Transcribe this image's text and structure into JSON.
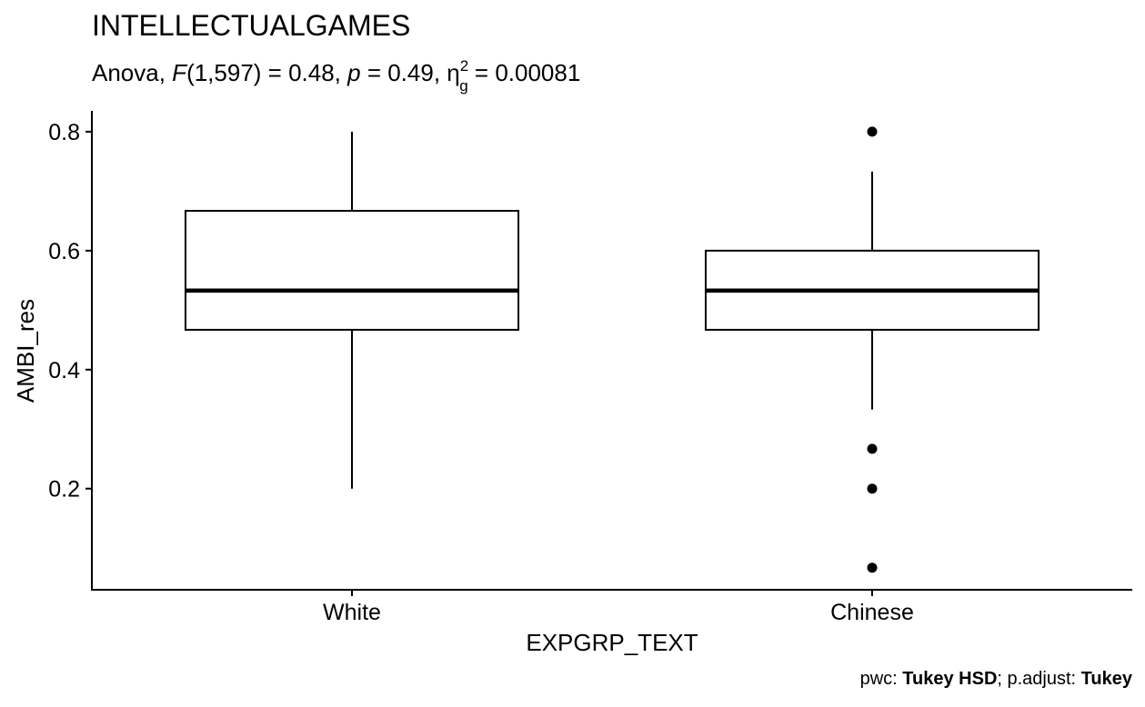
{
  "chart_data": {
    "type": "box",
    "title": "INTELLECTUALGAMES",
    "subtitle": {
      "prefix": "Anova, ",
      "F_symbol": "F",
      "F_args": "(1,597) = 0.48, ",
      "p_symbol": "p",
      "p_value": " = 0.49, ",
      "eta_symbol": "η",
      "eta_sub": "g",
      "eta_sup": "2",
      "eta_value": " = 0.00081"
    },
    "xlabel": "EXPGRP_TEXT",
    "ylabel": "AMBI_res",
    "ylim": [
      0.03,
      0.835
    ],
    "yticks": [
      0.2,
      0.4,
      0.6,
      0.8
    ],
    "ytick_labels": [
      "0.2",
      "0.4",
      "0.6",
      "0.8"
    ],
    "categories": [
      "White",
      "Chinese"
    ],
    "boxes": [
      {
        "name": "White",
        "whisker_low": 0.2,
        "q1": 0.467,
        "median": 0.533,
        "q3": 0.667,
        "whisker_high": 0.8,
        "outliers": []
      },
      {
        "name": "Chinese",
        "whisker_low": 0.333,
        "q1": 0.467,
        "median": 0.533,
        "q3": 0.6,
        "whisker_high": 0.733,
        "outliers": [
          0.8,
          0.267,
          0.2,
          0.067
        ]
      }
    ],
    "caption": {
      "pwc_label": "pwc: ",
      "pwc_value": "Tukey HSD",
      "sep": "; p.adjust: ",
      "adjust_value": "Tukey"
    }
  }
}
